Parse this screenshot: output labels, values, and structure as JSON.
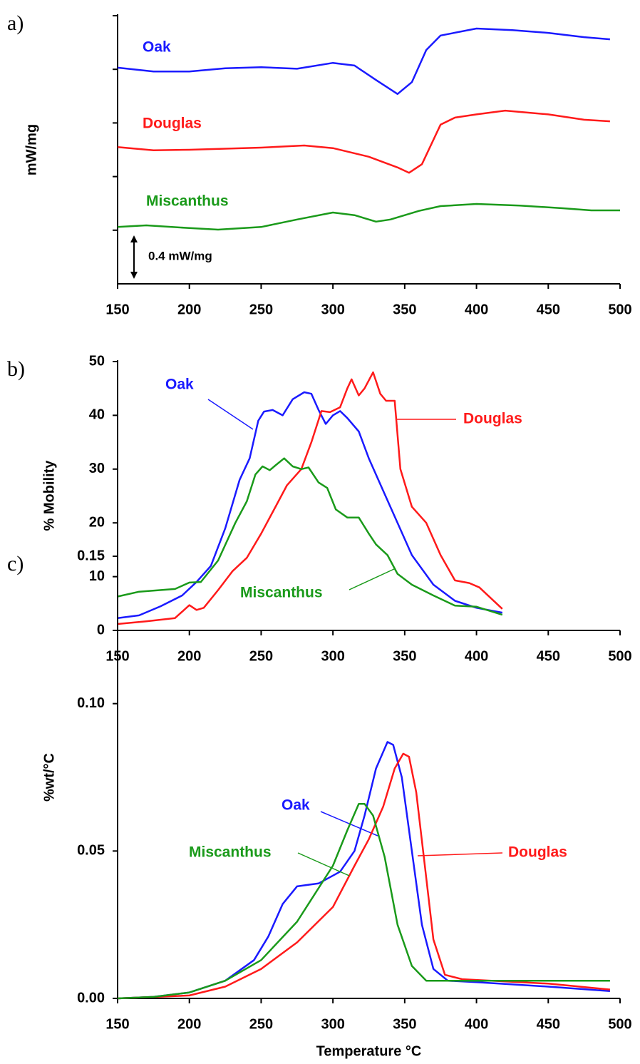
{
  "chart_data": [
    {
      "type": "line",
      "label": "a)",
      "ylabel": "mW/mg",
      "scale_bar_label": "0.4 mW/mg",
      "xlim": [
        150,
        500
      ],
      "xticks": [
        150,
        200,
        250,
        300,
        350,
        400,
        450,
        500
      ],
      "ylim": [
        0,
        5
      ],
      "yticks": [
        1,
        2,
        3,
        4,
        5
      ],
      "ytick_labels": false,
      "series": [
        {
          "name": "Oak",
          "color": "#1a1aff",
          "x": [
            150,
            175,
            200,
            225,
            250,
            275,
            300,
            315,
            330,
            345,
            355,
            365,
            375,
            400,
            425,
            450,
            475,
            493
          ],
          "values": [
            4.03,
            3.96,
            3.96,
            4.02,
            4.04,
            4.01,
            4.12,
            4.07,
            3.8,
            3.54,
            3.76,
            4.36,
            4.63,
            4.76,
            4.73,
            4.68,
            4.6,
            4.56
          ]
        },
        {
          "name": "Douglas",
          "color": "#ff1a1a",
          "x": [
            150,
            175,
            200,
            250,
            280,
            300,
            325,
            345,
            353,
            362,
            375,
            385,
            400,
            420,
            450,
            475,
            493
          ],
          "values": [
            2.55,
            2.49,
            2.5,
            2.54,
            2.58,
            2.53,
            2.37,
            2.17,
            2.07,
            2.23,
            2.97,
            3.1,
            3.16,
            3.23,
            3.16,
            3.06,
            3.03
          ]
        },
        {
          "name": "Miscanthus",
          "color": "#1a9a1a",
          "x": [
            150,
            170,
            200,
            220,
            250,
            275,
            300,
            315,
            330,
            340,
            360,
            375,
            400,
            430,
            460,
            480,
            500
          ],
          "values": [
            1.06,
            1.09,
            1.04,
            1.01,
            1.06,
            1.2,
            1.33,
            1.28,
            1.16,
            1.2,
            1.36,
            1.45,
            1.49,
            1.46,
            1.41,
            1.37,
            1.37
          ]
        }
      ]
    },
    {
      "type": "line",
      "label": "b)",
      "ylabel": "% Mobility",
      "xlim": [
        150,
        500
      ],
      "xticks": [
        150,
        200,
        250,
        300,
        350,
        400,
        450,
        500
      ],
      "ylim": [
        0,
        50
      ],
      "yticks": [
        0,
        10,
        20,
        30,
        40,
        50
      ],
      "series": [
        {
          "name": "Oak",
          "color": "#1a1aff",
          "x": [
            150,
            165,
            180,
            195,
            205,
            215,
            225,
            235,
            242,
            248,
            252,
            258,
            265,
            272,
            280,
            285,
            290,
            295,
            300,
            305,
            310,
            318,
            325,
            335,
            345,
            355,
            370,
            385,
            400,
            418
          ],
          "values": [
            2.3,
            2.8,
            4.5,
            6.5,
            9,
            12,
            19,
            28,
            32,
            39,
            40.7,
            41,
            40,
            43,
            44.3,
            44,
            41,
            38.4,
            40,
            40.8,
            39.5,
            37,
            32,
            26,
            20,
            14,
            8.5,
            5.5,
            4.2,
            3.3
          ]
        },
        {
          "name": "Douglas",
          "color": "#ff1a1a",
          "x": [
            150,
            170,
            190,
            200,
            205,
            210,
            220,
            230,
            240,
            250,
            260,
            268,
            278,
            285,
            292,
            298,
            305,
            310,
            313,
            318,
            322,
            328,
            333,
            337,
            343,
            347,
            355,
            365,
            375,
            385,
            395,
            402,
            418
          ],
          "values": [
            1.2,
            1.7,
            2.3,
            4.7,
            3.8,
            4.2,
            7.5,
            11,
            13.5,
            18,
            23,
            27,
            30,
            35,
            40.8,
            40.6,
            41.5,
            45,
            46.7,
            43.7,
            45,
            48,
            44,
            42.7,
            42.7,
            30,
            23,
            20,
            14,
            9.3,
            8.8,
            8,
            4
          ]
        },
        {
          "name": "Miscanthus",
          "color": "#1a9a1a",
          "x": [
            150,
            165,
            190,
            200,
            208,
            220,
            232,
            240,
            246,
            251,
            256,
            260,
            266,
            272,
            278,
            283,
            290,
            296,
            302,
            310,
            318,
            325,
            330,
            338,
            345,
            355,
            370,
            385,
            400,
            418
          ],
          "values": [
            6.3,
            7.2,
            7.7,
            8.9,
            9,
            13,
            20,
            24,
            29,
            30.5,
            29.8,
            30.7,
            32,
            30.5,
            30,
            30.3,
            27.5,
            26.5,
            22.5,
            21,
            21,
            18,
            16,
            14,
            10.5,
            8.5,
            6.5,
            4.6,
            4.4,
            2.9
          ]
        }
      ]
    },
    {
      "type": "line",
      "label": "c)",
      "ylabel": "%wt/°C",
      "xlabel": "Temperature °C",
      "xlim": [
        150,
        500
      ],
      "xticks": [
        150,
        200,
        250,
        300,
        350,
        400,
        450,
        500
      ],
      "ylim": [
        0,
        0.15
      ],
      "yticks": [
        {
          "value": 0,
          "label": "0.00"
        },
        {
          "value": 0.05,
          "label": "0.05"
        },
        {
          "value": 0.1,
          "label": "0.10"
        },
        {
          "value": 0.15,
          "label": "0.15"
        }
      ],
      "series": [
        {
          "name": "Oak",
          "color": "#1a1aff",
          "x": [
            150,
            175,
            200,
            225,
            245,
            255,
            265,
            275,
            290,
            305,
            315,
            322,
            330,
            338,
            342,
            348,
            355,
            362,
            370,
            380,
            400,
            450,
            493
          ],
          "values": [
            0,
            0.0005,
            0.002,
            0.006,
            0.013,
            0.021,
            0.032,
            0.038,
            0.039,
            0.043,
            0.05,
            0.062,
            0.078,
            0.087,
            0.086,
            0.075,
            0.05,
            0.025,
            0.01,
            0.006,
            0.0055,
            0.004,
            0.0025
          ]
        },
        {
          "name": "Douglas",
          "color": "#ff1a1a",
          "x": [
            150,
            200,
            225,
            250,
            275,
            300,
            315,
            325,
            335,
            343,
            349,
            353,
            358,
            364,
            370,
            378,
            390,
            450,
            493
          ],
          "values": [
            0,
            0.001,
            0.004,
            0.01,
            0.019,
            0.031,
            0.045,
            0.054,
            0.065,
            0.078,
            0.083,
            0.082,
            0.07,
            0.045,
            0.02,
            0.008,
            0.0065,
            0.005,
            0.003
          ]
        },
        {
          "name": "Miscanthus",
          "color": "#1a9a1a",
          "x": [
            150,
            175,
            200,
            225,
            250,
            275,
            300,
            310,
            318,
            322,
            328,
            336,
            345,
            355,
            365,
            400,
            493
          ],
          "values": [
            0,
            0.0005,
            0.002,
            0.006,
            0.013,
            0.026,
            0.045,
            0.057,
            0.066,
            0.066,
            0.062,
            0.048,
            0.025,
            0.011,
            0.006,
            0.006,
            0.006
          ]
        }
      ]
    }
  ]
}
